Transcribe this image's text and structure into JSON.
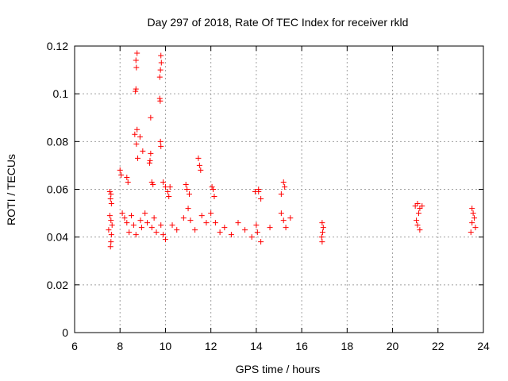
{
  "chart_data": {
    "type": "scatter",
    "title": "Day 297 of 2018, Rate Of TEC Index for receiver rkld",
    "xlabel": "GPS time / hours",
    "ylabel": "ROTI / TECUs",
    "xlim": [
      6,
      24
    ],
    "ylim": [
      0,
      0.12
    ],
    "xticks": [
      "6",
      "8",
      "10",
      "12",
      "14",
      "16",
      "18",
      "20",
      "22",
      "24"
    ],
    "yticks": [
      "0",
      "0.02",
      "0.04",
      "0.06",
      "0.08",
      "0.1",
      "0.12"
    ],
    "grid": true,
    "marker": "+",
    "color": "#ff0000",
    "series": [
      {
        "name": "ROTI",
        "points": [
          [
            8.75,
            0.117
          ],
          [
            8.7,
            0.114
          ],
          [
            8.72,
            0.111
          ],
          [
            9.8,
            0.116
          ],
          [
            9.82,
            0.113
          ],
          [
            9.78,
            0.11
          ],
          [
            9.75,
            0.107
          ],
          [
            8.7,
            0.102
          ],
          [
            8.68,
            0.101
          ],
          [
            9.75,
            0.098
          ],
          [
            9.77,
            0.097
          ],
          [
            9.35,
            0.09
          ],
          [
            8.75,
            0.085
          ],
          [
            8.65,
            0.083
          ],
          [
            8.88,
            0.082
          ],
          [
            8.72,
            0.079
          ],
          [
            9.78,
            0.08
          ],
          [
            9.8,
            0.078
          ],
          [
            9.0,
            0.076
          ],
          [
            9.35,
            0.075
          ],
          [
            8.78,
            0.073
          ],
          [
            9.32,
            0.072
          ],
          [
            9.3,
            0.071
          ],
          [
            11.45,
            0.073
          ],
          [
            11.5,
            0.07
          ],
          [
            11.55,
            0.068
          ],
          [
            7.55,
            0.059
          ],
          [
            7.6,
            0.058
          ],
          [
            7.58,
            0.056
          ],
          [
            7.62,
            0.054
          ],
          [
            8.0,
            0.068
          ],
          [
            8.05,
            0.066
          ],
          [
            8.3,
            0.065
          ],
          [
            8.35,
            0.063
          ],
          [
            9.4,
            0.063
          ],
          [
            9.45,
            0.062
          ],
          [
            9.9,
            0.063
          ],
          [
            10.0,
            0.061
          ],
          [
            10.1,
            0.059
          ],
          [
            10.2,
            0.061
          ],
          [
            10.15,
            0.057
          ],
          [
            10.9,
            0.062
          ],
          [
            10.95,
            0.06
          ],
          [
            11.05,
            0.058
          ],
          [
            12.05,
            0.061
          ],
          [
            12.1,
            0.06
          ],
          [
            12.15,
            0.057
          ],
          [
            13.95,
            0.059
          ],
          [
            14.1,
            0.059
          ],
          [
            14.2,
            0.056
          ],
          [
            14.1,
            0.06
          ],
          [
            15.2,
            0.063
          ],
          [
            15.25,
            0.061
          ],
          [
            15.1,
            0.058
          ],
          [
            7.55,
            0.049
          ],
          [
            7.6,
            0.047
          ],
          [
            7.65,
            0.045
          ],
          [
            7.5,
            0.043
          ],
          [
            7.62,
            0.041
          ],
          [
            7.6,
            0.038
          ],
          [
            7.58,
            0.036
          ],
          [
            8.1,
            0.05
          ],
          [
            8.2,
            0.048
          ],
          [
            8.3,
            0.046
          ],
          [
            8.4,
            0.042
          ],
          [
            8.5,
            0.049
          ],
          [
            8.6,
            0.045
          ],
          [
            8.7,
            0.041
          ],
          [
            8.9,
            0.047
          ],
          [
            8.95,
            0.044
          ],
          [
            9.1,
            0.05
          ],
          [
            9.2,
            0.046
          ],
          [
            9.4,
            0.044
          ],
          [
            9.5,
            0.048
          ],
          [
            9.6,
            0.042
          ],
          [
            9.8,
            0.045
          ],
          [
            9.9,
            0.041
          ],
          [
            10.0,
            0.039
          ],
          [
            10.3,
            0.045
          ],
          [
            10.5,
            0.043
          ],
          [
            10.8,
            0.048
          ],
          [
            11.0,
            0.052
          ],
          [
            11.1,
            0.047
          ],
          [
            11.3,
            0.043
          ],
          [
            11.6,
            0.049
          ],
          [
            11.8,
            0.046
          ],
          [
            12.0,
            0.05
          ],
          [
            12.2,
            0.046
          ],
          [
            12.4,
            0.042
          ],
          [
            12.6,
            0.044
          ],
          [
            12.9,
            0.041
          ],
          [
            13.2,
            0.046
          ],
          [
            13.5,
            0.043
          ],
          [
            13.8,
            0.04
          ],
          [
            14.0,
            0.045
          ],
          [
            14.05,
            0.042
          ],
          [
            14.2,
            0.038
          ],
          [
            14.6,
            0.044
          ],
          [
            15.1,
            0.05
          ],
          [
            15.2,
            0.047
          ],
          [
            15.3,
            0.044
          ],
          [
            15.5,
            0.048
          ],
          [
            16.9,
            0.046
          ],
          [
            16.95,
            0.044
          ],
          [
            16.92,
            0.042
          ],
          [
            16.88,
            0.04
          ],
          [
            16.9,
            0.038
          ],
          [
            21.0,
            0.053
          ],
          [
            21.1,
            0.054
          ],
          [
            21.2,
            0.052
          ],
          [
            21.15,
            0.05
          ],
          [
            21.3,
            0.053
          ],
          [
            21.05,
            0.047
          ],
          [
            21.1,
            0.045
          ],
          [
            21.2,
            0.043
          ],
          [
            23.5,
            0.052
          ],
          [
            23.55,
            0.05
          ],
          [
            23.6,
            0.048
          ],
          [
            23.5,
            0.046
          ],
          [
            23.65,
            0.044
          ],
          [
            23.45,
            0.042
          ]
        ]
      }
    ]
  }
}
